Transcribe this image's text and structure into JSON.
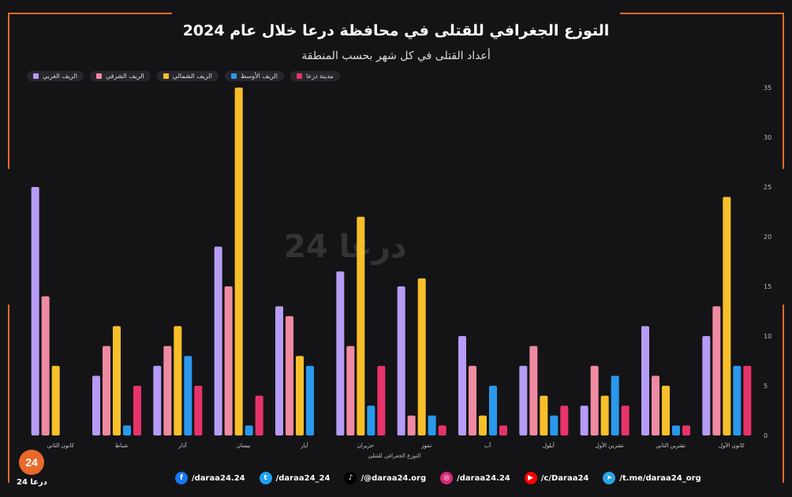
{
  "title": "التوزع الجغرافي للقتلى في محافظة درعا خلال عام 2024",
  "subtitle": "أعداد القتلى في كل شهر بحسب المنطقة",
  "watermark": "درعا 24",
  "logo": {
    "number": "24",
    "text": "درعا 24"
  },
  "chart_data": {
    "type": "bar",
    "xlabel": "التوزع الجغرافي للقتلى",
    "ylabel": "",
    "ylim": [
      0,
      35
    ],
    "yticks": [
      0,
      5,
      10,
      15,
      20,
      25,
      30,
      35
    ],
    "grid": false,
    "legend_position": "top-left",
    "categories": [
      "كانون الثاني",
      "شباط",
      "آذار",
      "نيسان",
      "أيار",
      "حزيران",
      "تموز",
      "آب",
      "أيلول",
      "تشرين الأول",
      "تشرين الثاني",
      "كانون الأول"
    ],
    "series": [
      {
        "name": "الريف الغربي",
        "color": "#b69cf5",
        "values": [
          25,
          6,
          7,
          19,
          13,
          16.5,
          15,
          10,
          7,
          3,
          11,
          10
        ]
      },
      {
        "name": "الريف الشرقي",
        "color": "#f08aa0",
        "values": [
          14,
          9,
          9,
          15,
          12,
          9,
          2,
          7,
          9,
          7,
          6,
          13
        ]
      },
      {
        "name": "الريف الشمالي",
        "color": "#f7bf2a",
        "values": [
          7,
          11,
          11,
          35,
          8,
          22,
          15.8,
          2,
          4,
          4,
          5,
          24
        ]
      },
      {
        "name": "الريف الأوسط",
        "color": "#2a98ec",
        "values": [
          0,
          1,
          8,
          1,
          7,
          3,
          2,
          5,
          2,
          6,
          1,
          7
        ]
      },
      {
        "name": "مدينة درعا",
        "color": "#e8336a",
        "values": [
          0,
          5,
          5,
          4,
          0,
          7,
          1,
          1,
          3,
          3,
          1,
          7
        ]
      }
    ]
  },
  "social": [
    {
      "name": "facebook",
      "label": "/daraa24.24",
      "icon": "facebook-icon",
      "color": "#1877f2",
      "glyph": "f"
    },
    {
      "name": "twitter",
      "label": "/daraa24_24",
      "icon": "twitter-icon",
      "color": "#1da1f2",
      "glyph": "t"
    },
    {
      "name": "tiktok",
      "label": "/@daraa24.org",
      "icon": "tiktok-icon",
      "color": "#000000",
      "glyph": "♪"
    },
    {
      "name": "instagram",
      "label": "/daraa24.24",
      "icon": "instagram-icon",
      "color": "#d62976",
      "glyph": "◎"
    },
    {
      "name": "youtube",
      "label": "/c/Daraa24",
      "icon": "youtube-icon",
      "color": "#ff0000",
      "glyph": "▶"
    },
    {
      "name": "telegram",
      "label": "/t.me/daraa24_org",
      "icon": "telegram-icon",
      "color": "#2aa3df",
      "glyph": "➤"
    }
  ]
}
